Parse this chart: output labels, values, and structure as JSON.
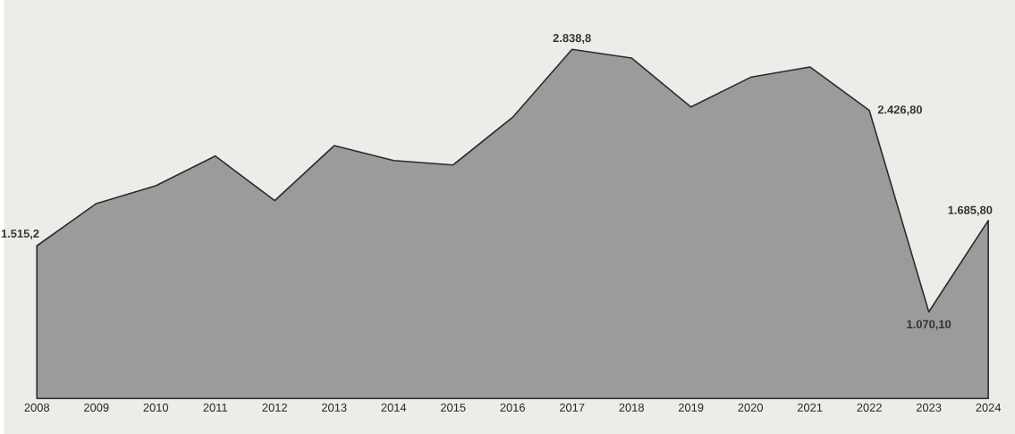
{
  "chart_data": {
    "type": "area",
    "categories": [
      "2008",
      "2009",
      "2010",
      "2011",
      "2012",
      "2013",
      "2014",
      "2015",
      "2016",
      "2017",
      "2018",
      "2019",
      "2020",
      "2021",
      "2022",
      "2023",
      "2024"
    ],
    "values": [
      1515.2,
      1800,
      1920,
      2120,
      1820,
      2190,
      2090,
      2060,
      2380,
      2838.8,
      2780,
      2450,
      2650,
      2720,
      2426.8,
      1070.1,
      1685.8
    ],
    "value_labels": [
      "1.515,2",
      null,
      null,
      null,
      null,
      null,
      null,
      null,
      null,
      "2.838,8",
      null,
      null,
      null,
      null,
      "2.426,80",
      "1.070,10",
      "1.685,80"
    ],
    "color": "#9b9b9b"
  }
}
